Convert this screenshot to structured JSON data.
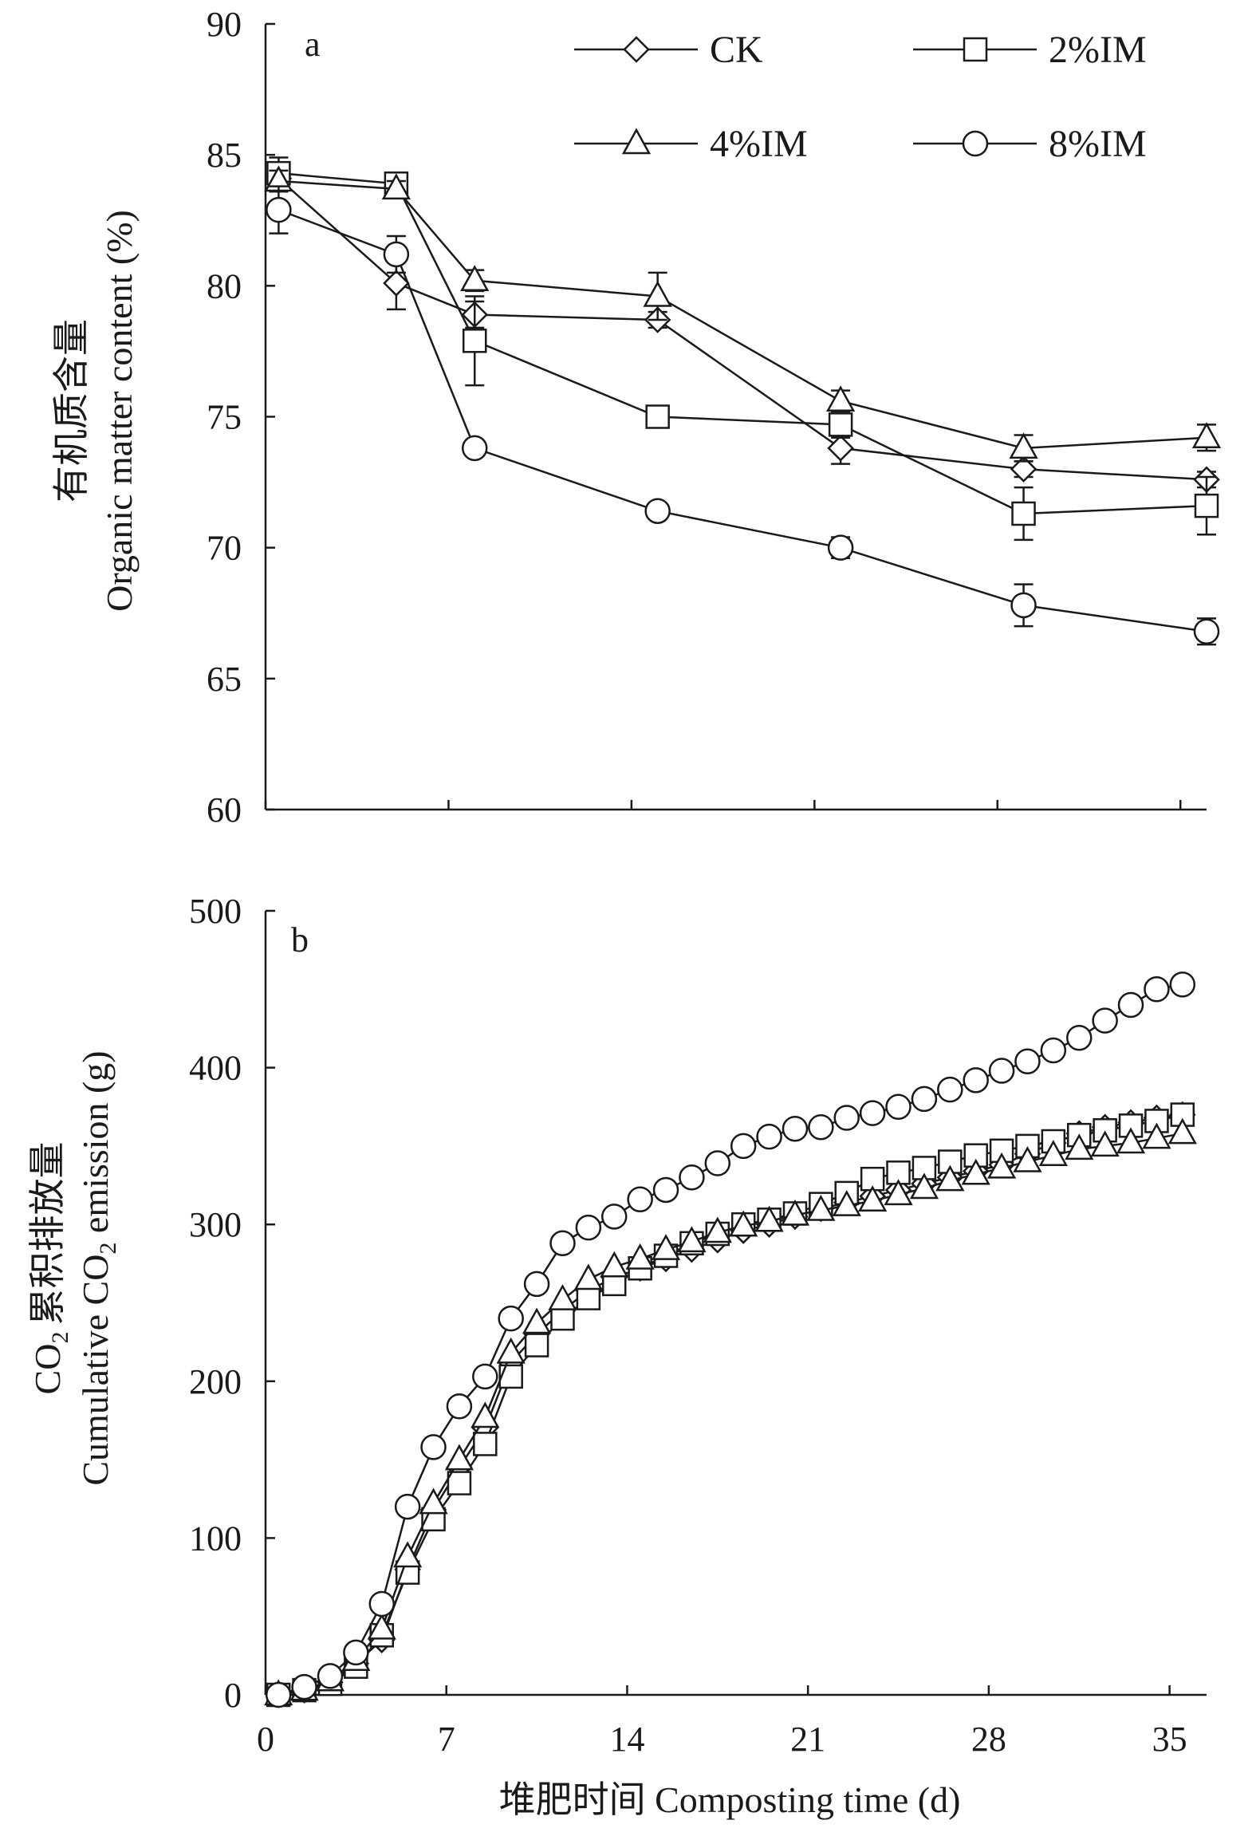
{
  "chart_data": [
    {
      "type": "line",
      "panel_label": "a",
      "ylabel_zh": "有机质含量",
      "ylabel": "Organic matter content (%)",
      "ylim": [
        60,
        90
      ],
      "yticks": [
        60,
        65,
        70,
        75,
        80,
        85,
        90
      ],
      "x": [
        0.5,
        5,
        8,
        15,
        22,
        29,
        36
      ],
      "xlim": [
        0,
        36
      ],
      "x_minor_ticks": [
        0,
        7,
        14,
        21,
        28,
        35
      ],
      "legend_position": "top-right",
      "series": [
        {
          "name": "CK",
          "marker": "diamond",
          "values": [
            84.1,
            80.1,
            78.9,
            78.7,
            73.8,
            73.0,
            72.6
          ],
          "errors": [
            0.5,
            1.0,
            0.5,
            0.3,
            0.6,
            0.3,
            0.3
          ]
        },
        {
          "name": "2%IM",
          "marker": "square",
          "values": [
            84.3,
            83.9,
            77.9,
            75.0,
            74.7,
            71.3,
            71.6
          ],
          "errors": [
            0.6,
            0.3,
            1.7,
            0.3,
            0.5,
            1.0,
            1.1
          ]
        },
        {
          "name": "4%IM",
          "marker": "triangle",
          "values": [
            84.0,
            83.7,
            80.2,
            79.6,
            75.6,
            73.8,
            74.2
          ],
          "errors": [
            0.4,
            0.3,
            0.4,
            0.9,
            0.4,
            0.5,
            0.5
          ]
        },
        {
          "name": "8%IM",
          "marker": "circle",
          "values": [
            82.9,
            81.2,
            73.8,
            71.4,
            70.0,
            67.8,
            66.8
          ],
          "errors": [
            0.9,
            0.7,
            0.3,
            0.2,
            0.4,
            0.8,
            0.5
          ]
        }
      ]
    },
    {
      "type": "line",
      "panel_label": "b",
      "ylabel_zh_prefix": "CO",
      "ylabel_zh_sub": "2",
      "ylabel_zh": "累积排放量",
      "ylabel_prefix": "Cumulative CO",
      "ylabel_sub": "2",
      "ylabel_suffix": " emission (g)",
      "xlabel": "堆肥时间 Composting time (d)",
      "ylim": [
        0,
        500
      ],
      "yticks": [
        0,
        100,
        200,
        300,
        400,
        500
      ],
      "xlim": [
        0,
        36
      ],
      "xticks": [
        0,
        7,
        14,
        21,
        28,
        35
      ],
      "x": [
        0.5,
        1.5,
        2.5,
        3.5,
        4.5,
        5.5,
        6.5,
        7.5,
        8.5,
        9.5,
        10.5,
        11.5,
        12.5,
        13.5,
        14.5,
        15.5,
        16.5,
        17.5,
        18.5,
        19.5,
        20.5,
        21.5,
        22.5,
        23.5,
        24.5,
        25.5,
        26.5,
        27.5,
        28.5,
        29.5,
        30.5,
        31.5,
        32.5,
        33.5,
        34.5,
        35.5
      ],
      "series": [
        {
          "name": "CK",
          "marker": "diamond",
          "values": [
            0,
            3,
            8,
            20,
            35,
            80,
            118,
            145,
            170,
            212,
            230,
            245,
            258,
            266,
            272,
            278,
            284,
            290,
            296,
            300,
            305,
            310,
            314,
            318,
            322,
            326,
            330,
            334,
            338,
            345,
            352,
            358,
            362,
            365,
            368,
            370
          ]
        },
        {
          "name": "2%IM",
          "marker": "square",
          "values": [
            0,
            3,
            7,
            18,
            38,
            78,
            112,
            135,
            160,
            203,
            223,
            240,
            253,
            262,
            272,
            280,
            288,
            294,
            300,
            303,
            307,
            313,
            320,
            329,
            333,
            336,
            340,
            344,
            347,
            350,
            353,
            357,
            360,
            363,
            366,
            370
          ]
        },
        {
          "name": "4%IM",
          "marker": "triangle",
          "values": [
            0,
            3,
            9,
            22,
            42,
            88,
            122,
            150,
            177,
            218,
            237,
            252,
            265,
            273,
            278,
            284,
            289,
            295,
            299,
            302,
            306,
            309,
            312,
            315,
            319,
            323,
            328,
            332,
            336,
            340,
            344,
            348,
            350,
            352,
            355,
            358
          ]
        },
        {
          "name": "8%IM",
          "marker": "circle",
          "values": [
            0,
            5,
            12,
            27,
            58,
            120,
            158,
            184,
            203,
            240,
            262,
            288,
            298,
            305,
            316,
            322,
            330,
            339,
            350,
            356,
            361,
            362,
            368,
            371,
            375,
            380,
            386,
            392,
            398,
            404,
            411,
            419,
            430,
            440,
            450,
            453
          ]
        }
      ]
    }
  ]
}
